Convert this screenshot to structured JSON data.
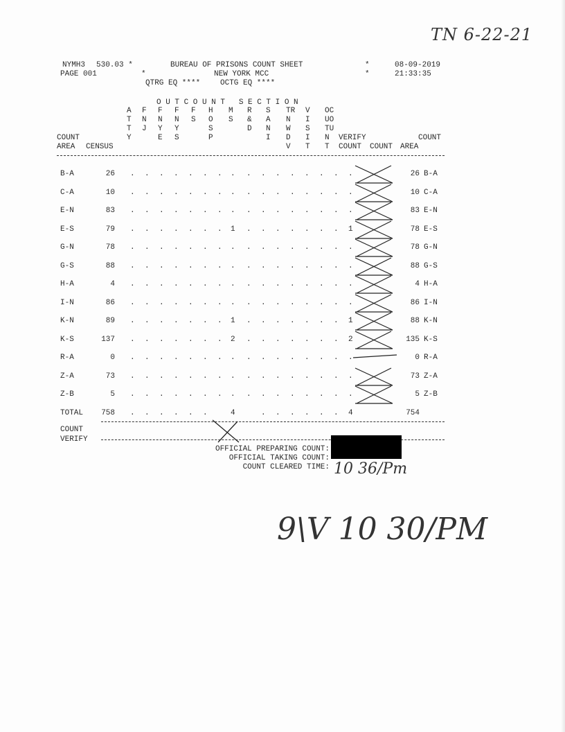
{
  "header": {
    "system": "NYMH3",
    "version": "530.03 *",
    "title": "BUREAU OF PRISONS COUNT SHEET",
    "star1": "*",
    "date": "08-09-2019",
    "page": "PAGE 001",
    "star2": "*",
    "facility": "NEW YORK MCC",
    "star3": "*",
    "time": "21:33:35",
    "qtrg": "QTRG EQ ****",
    "octg": "OCTG EQ ****"
  },
  "section_title": "O U T C O U N T   S E C T I O N",
  "columns": [
    {
      "lines": [
        "A",
        "T",
        "T",
        "Y"
      ]
    },
    {
      "lines": [
        "F",
        "N",
        "J",
        ""
      ]
    },
    {
      "lines": [
        "F",
        "N",
        "Y",
        "E"
      ]
    },
    {
      "lines": [
        "F",
        "N",
        "Y",
        "S"
      ]
    },
    {
      "lines": [
        "F",
        "S",
        "",
        ""
      ]
    },
    {
      "lines": [
        "H",
        "O",
        "S",
        "P"
      ]
    },
    {
      "lines": [
        "M",
        "S",
        "",
        ""
      ]
    },
    {
      "lines": [
        "R",
        "&",
        "D",
        ""
      ]
    },
    {
      "lines": [
        "S",
        "A",
        "N",
        "I"
      ]
    },
    {
      "lines": [
        "TR",
        "N",
        "W",
        "D",
        "V"
      ]
    },
    {
      "lines": [
        "V",
        "I",
        "S",
        "I",
        "T"
      ]
    },
    {
      "lines": [
        "OC",
        "UO",
        "TU",
        "N",
        "T"
      ]
    }
  ],
  "left_headers": {
    "count": "COUNT",
    "area": "AREA",
    "census": "CENSUS"
  },
  "right_headers": {
    "verify": "VERIFY",
    "count_top": "COUNT",
    "verify_count": "COUNT",
    "count": "COUNT",
    "area": "AREA"
  },
  "rows": [
    {
      "area": "B-A",
      "census": "26",
      "h": ".",
      "oc": ".",
      "count": "26",
      "area2": "B-A"
    },
    {
      "area": "C-A",
      "census": "10",
      "h": ".",
      "oc": ".",
      "count": "10",
      "area2": "C-A"
    },
    {
      "area": "E-N",
      "census": "83",
      "h": ".",
      "oc": ".",
      "count": "83",
      "area2": "E-N"
    },
    {
      "area": "E-S",
      "census": "79",
      "h": "1",
      "oc": "1",
      "count": "78",
      "area2": "E-S"
    },
    {
      "area": "G-N",
      "census": "78",
      "h": ".",
      "oc": ".",
      "count": "78",
      "area2": "G-N"
    },
    {
      "area": "G-S",
      "census": "88",
      "h": ".",
      "oc": ".",
      "count": "88",
      "area2": "G-S"
    },
    {
      "area": "H-A",
      "census": "4",
      "h": ".",
      "oc": ".",
      "count": "4",
      "area2": "H-A"
    },
    {
      "area": "I-N",
      "census": "86",
      "h": ".",
      "oc": ".",
      "count": "86",
      "area2": "I-N"
    },
    {
      "area": "K-N",
      "census": "89",
      "h": "1",
      "oc": "1",
      "count": "88",
      "area2": "K-N"
    },
    {
      "area": "K-S",
      "census": "137",
      "h": "2",
      "oc": "2",
      "count": "135",
      "area2": "K-S"
    },
    {
      "area": "R-A",
      "census": "0",
      "h": ".",
      "oc": ".",
      "count": "0",
      "area2": "R-A"
    },
    {
      "area": "Z-A",
      "census": "73",
      "h": ".",
      "oc": ".",
      "count": "73",
      "area2": "Z-A"
    },
    {
      "area": "Z-B",
      "census": "5",
      "h": ".",
      "oc": ".",
      "count": "5",
      "area2": "Z-B"
    }
  ],
  "total": {
    "label": "TOTAL",
    "census": "758",
    "h": "4",
    "oc": "4",
    "count": "754"
  },
  "count_verify": {
    "line1": "COUNT",
    "line2": "VERIFY"
  },
  "footer": {
    "preparing": "OFFICIAL PREPARING COUNT:",
    "taking": "OFFICIAL TAKING COUNT:",
    "cleared": "COUNT CLEARED TIME:",
    "cleared_handwritten": "10 36/Pm"
  },
  "handwriting": {
    "top_right": "TN 6-22-21",
    "bottom": "9\\V 10 30/PM"
  }
}
